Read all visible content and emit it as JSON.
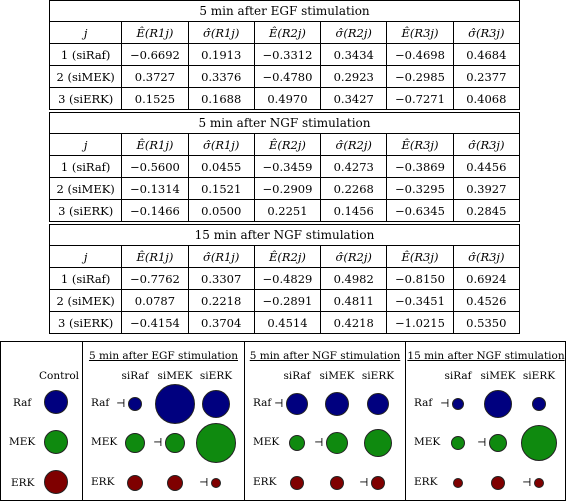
{
  "tables": [
    {
      "title": "5 min after EGF stimulation",
      "headers": [
        "j",
        "Ê(R1j)",
        "σ̂(R1j)",
        "Ê(R2j)",
        "σ̂(R2j)",
        "Ê(R3j)",
        "σ̂(R3j)"
      ],
      "rows": [
        [
          "1 (siRaf)",
          "−0.6692",
          "0.1913",
          "−0.3312",
          "0.3434",
          "−0.4698",
          "0.4684"
        ],
        [
          "2 (siMEK)",
          "0.3727",
          "0.3376",
          "−0.4780",
          "0.2923",
          "−0.2985",
          "0.2377"
        ],
        [
          "3 (siERK)",
          "0.1525",
          "0.1688",
          "0.4970",
          "0.3427",
          "−0.7271",
          "0.4068"
        ]
      ]
    },
    {
      "title": "5 min after NGF stimulation",
      "headers": [
        "j",
        "Ê(R1j)",
        "σ̂(R1j)",
        "Ê(R2j)",
        "σ̂(R2j)",
        "Ê(R3j)",
        "σ̂(R3j)"
      ],
      "rows": [
        [
          "1 (siRaf)",
          "−0.5600",
          "0.0455",
          "−0.3459",
          "0.4273",
          "−0.3869",
          "0.4456"
        ],
        [
          "2 (siMEK)",
          "−0.1314",
          "0.1521",
          "−0.2909",
          "0.2268",
          "−0.3295",
          "0.3927"
        ],
        [
          "3 (siERK)",
          "−0.1466",
          "0.0500",
          "0.2251",
          "0.1456",
          "−0.6345",
          "0.2845"
        ]
      ]
    },
    {
      "title": "15 min after NGF stimulation",
      "headers": [
        "j",
        "Ê(R1j)",
        "σ̂(R1j)",
        "Ê(R2j)",
        "σ̂(R2j)",
        "Ê(R3j)",
        "σ̂(R3j)"
      ],
      "rows": [
        [
          "1 (siRaf)",
          "−0.7762",
          "0.3307",
          "−0.4829",
          "0.4982",
          "−0.8150",
          "0.6924"
        ],
        [
          "2 (siMEK)",
          "0.0787",
          "0.2218",
          "−0.2891",
          "0.4811",
          "−0.3451",
          "0.4526"
        ],
        [
          "3 (siERK)",
          "−0.4154",
          "0.3704",
          "0.4514",
          "0.4218",
          "−1.0215",
          "0.5350"
        ]
      ]
    }
  ],
  "panel": {
    "control_label": "Control",
    "row_labels": [
      "Raf",
      "MEK",
      "ERK"
    ],
    "col_labels": [
      "siRaf",
      "siMEK",
      "siERK"
    ],
    "inhibit_symbol": "⊣",
    "colors": {
      "Raf": "#00007f",
      "MEK": "#0f8a0f",
      "ERK": "#7f0000"
    },
    "subpanels": [
      "5 min after EGF stimulation",
      "5 min after NGF stimulation",
      "15 min after NGF stimulation"
    ]
  }
}
